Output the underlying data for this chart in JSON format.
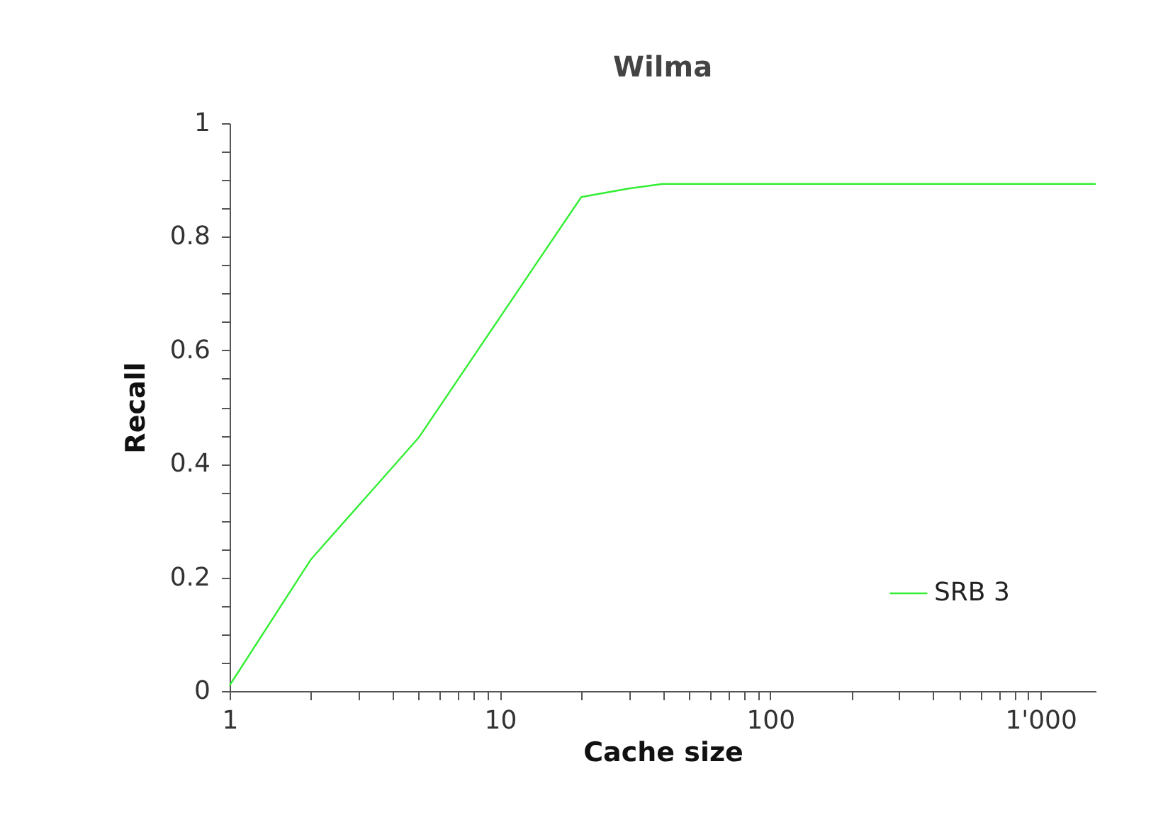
{
  "chart_data": {
    "type": "line",
    "title": "Wilma",
    "xlabel": "Cache size",
    "ylabel": "Recall",
    "log": "x",
    "xlim": [
      1,
      1600
    ],
    "xticks": [
      1,
      {
        "value": 2,
        "label": null
      },
      {
        "value": 3,
        "label": null
      },
      {
        "value": 4,
        "label": null
      },
      {
        "value": 5,
        "label": null
      },
      {
        "value": 6,
        "label": null
      },
      {
        "value": 7,
        "label": null
      },
      {
        "value": 8,
        "label": null
      },
      {
        "value": 9,
        "label": null
      },
      10,
      {
        "value": 20,
        "label": null
      },
      {
        "value": 30,
        "label": null
      },
      {
        "value": 40,
        "label": null
      },
      {
        "value": 50,
        "label": null
      },
      {
        "value": 60,
        "label": null
      },
      {
        "value": 70,
        "label": null
      },
      {
        "value": 80,
        "label": null
      },
      {
        "value": 90,
        "label": null
      },
      100,
      {
        "value": 200,
        "label": null
      },
      {
        "value": 300,
        "label": null
      },
      {
        "value": 400,
        "label": null
      },
      {
        "value": 500,
        "label": null
      },
      {
        "value": 600,
        "label": null
      },
      {
        "value": 700,
        "label": null
      },
      {
        "value": 800,
        "label": null
      },
      {
        "value": 900,
        "label": null
      },
      {
        "value": 1000,
        "label": "1'000"
      }
    ],
    "ylim": [
      0,
      1
    ],
    "yticks": [
      0,
      {
        "value": 0.05,
        "label": null
      },
      {
        "value": 0.1,
        "label": null
      },
      {
        "value": 0.15,
        "label": null
      },
      0.2,
      {
        "value": 0.25,
        "label": null
      },
      {
        "value": 0.3,
        "label": null
      },
      {
        "value": 0.35,
        "label": null
      },
      0.4,
      {
        "value": 0.45,
        "label": null
      },
      {
        "value": 0.5,
        "label": null
      },
      {
        "value": 0.55,
        "label": null
      },
      0.6,
      {
        "value": 0.65,
        "label": null
      },
      {
        "value": 0.7,
        "label": null
      },
      {
        "value": 0.75,
        "label": null
      },
      0.8,
      {
        "value": 0.85,
        "label": null
      },
      {
        "value": 0.9,
        "label": null
      },
      {
        "value": 0.95,
        "label": null
      },
      1
    ],
    "grid": false,
    "legend": "bottom right",
    "marker": "none",
    "line_style": "solid",
    "x": [
      1,
      2,
      5,
      20,
      30,
      40,
      1600
    ],
    "series": [
      {
        "name": "SRB 3",
        "color": "#33ee33",
        "values": [
          0.01,
          0.232,
          0.446,
          0.87,
          0.885,
          0.893,
          0.893
        ]
      }
    ]
  }
}
